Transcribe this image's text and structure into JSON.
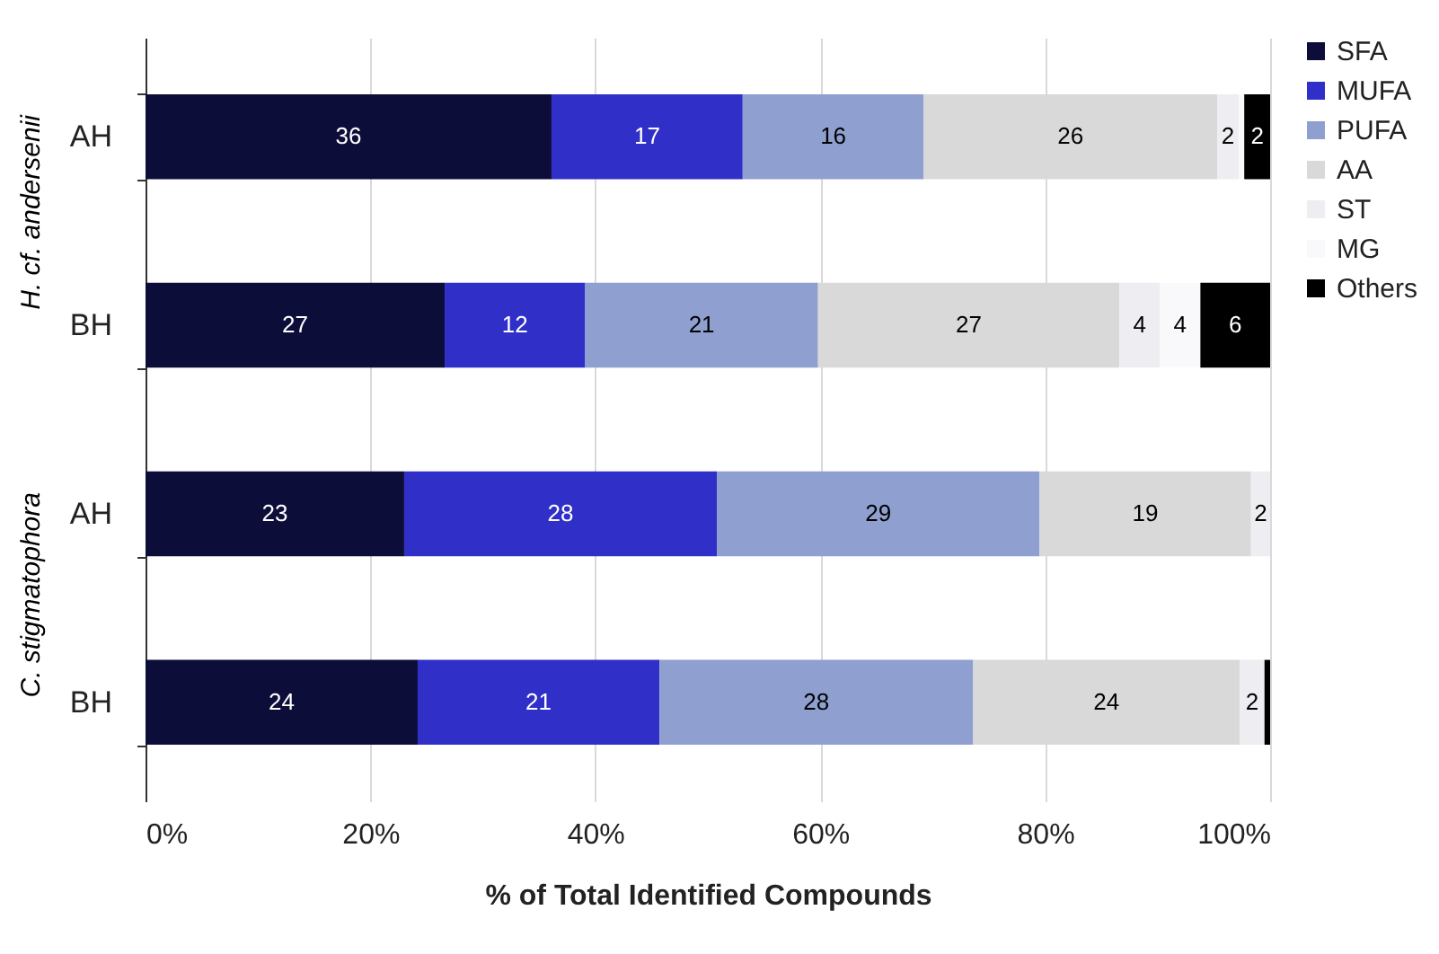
{
  "chart_data": {
    "type": "bar",
    "orientation": "horizontal",
    "stacked": true,
    "categories": [
      "AH",
      "BH",
      "AH",
      "BH"
    ],
    "series": [
      {
        "name": "SFA",
        "color": "#0d0d3a",
        "values": [
          36.1,
          26.6,
          23.0,
          24.2
        ],
        "value_labels": [
          "36",
          "27",
          "23",
          "24"
        ]
      },
      {
        "name": "MUFA",
        "color": "#3030c8",
        "values": [
          17.0,
          12.5,
          27.8,
          21.5
        ],
        "value_labels": [
          "17",
          "12",
          "28",
          "21"
        ]
      },
      {
        "name": "PUFA",
        "color": "#8fa0d0",
        "values": [
          16.1,
          20.7,
          28.7,
          27.9
        ],
        "value_labels": [
          "16",
          "21",
          "29",
          "28"
        ]
      },
      {
        "name": "AA",
        "color": "#d9d9d9",
        "values": [
          26.1,
          26.8,
          18.8,
          23.7
        ],
        "value_labels": [
          "26",
          "27",
          "19",
          "24"
        ]
      },
      {
        "name": "ST",
        "color": "#eeeef2",
        "values": [
          1.9,
          3.6,
          1.7,
          2.2
        ],
        "value_labels": [
          "2",
          "4",
          "2",
          "2"
        ]
      },
      {
        "name": "MG",
        "color": "#f9f9fb",
        "values": [
          0.5,
          3.6,
          null,
          null
        ],
        "value_labels": [
          null,
          "4",
          null,
          null
        ]
      },
      {
        "name": "Others",
        "color": "#000000",
        "values": [
          2.3,
          6.2,
          null,
          0.5
        ],
        "value_labels": [
          "2",
          "6",
          null,
          null
        ]
      }
    ],
    "xlabel": "% of Total Identified Compounds",
    "xlim": [
      0,
      100
    ],
    "xticks": [
      {
        "value": 0,
        "label": "0%"
      },
      {
        "value": 20,
        "label": "20%"
      },
      {
        "value": 40,
        "label": "40%"
      },
      {
        "value": 60,
        "label": "60%"
      },
      {
        "value": 80,
        "label": "80%"
      },
      {
        "value": 100,
        "label": "100%"
      }
    ],
    "grid": "x",
    "legend": "top right",
    "annotations": [
      "H. cf. andersenii",
      "C. stigmatophora"
    ]
  }
}
